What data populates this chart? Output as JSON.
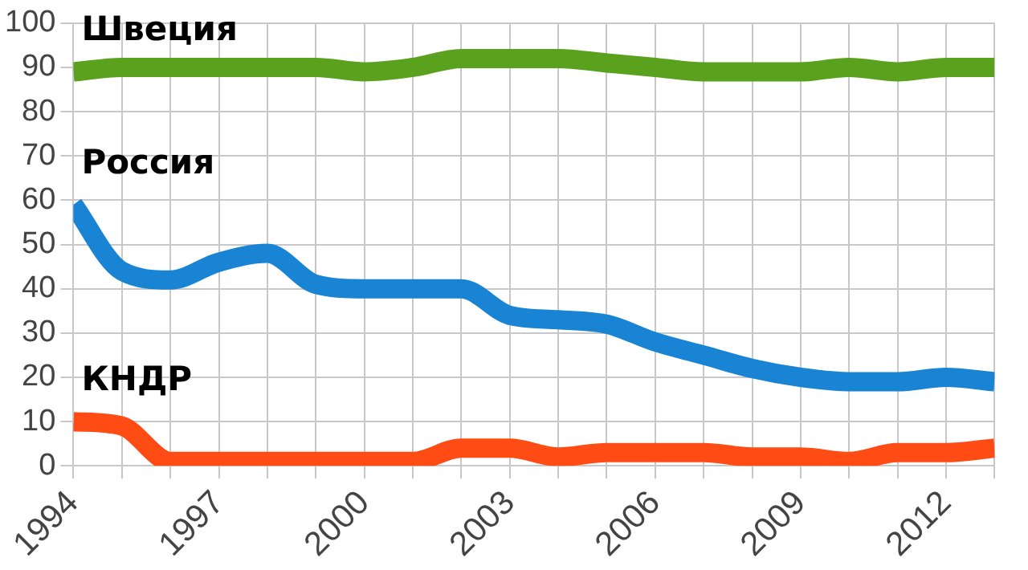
{
  "chart_data": {
    "type": "line",
    "x": [
      1994,
      1995,
      1996,
      1997,
      1998,
      1999,
      2000,
      2001,
      2002,
      2003,
      2004,
      2005,
      2006,
      2007,
      2008,
      2009,
      2010,
      2011,
      2012,
      2013
    ],
    "series": [
      {
        "name": "Швеция",
        "color": "#5aa21e",
        "values": [
          89,
          90,
          90,
          90,
          90,
          90,
          89,
          90,
          92,
          92,
          92,
          91,
          90,
          89,
          89,
          89,
          90,
          89,
          90,
          90
        ]
      },
      {
        "name": "Россия",
        "color": "#1a84d4",
        "values": [
          59,
          44,
          42,
          46,
          48,
          41,
          40,
          40,
          40,
          34,
          33,
          32,
          28,
          25,
          22,
          20,
          19,
          19,
          20,
          19
        ]
      },
      {
        "name": "КНДР",
        "color": "#ff4b14",
        "values": [
          10,
          9,
          1,
          1,
          1,
          1,
          1,
          1,
          4,
          4,
          2,
          3,
          3,
          3,
          2,
          2,
          1,
          3,
          3,
          4
        ]
      }
    ],
    "xlim": [
      1994,
      2013
    ],
    "xticks": [
      1994,
      {
        "value": 1995,
        "label": null
      },
      {
        "value": 1996,
        "label": null
      },
      1997,
      {
        "value": 1998,
        "label": null
      },
      {
        "value": 1999,
        "label": null
      },
      2000,
      {
        "value": 2001,
        "label": null
      },
      {
        "value": 2002,
        "label": null
      },
      2003,
      {
        "value": 2004,
        "label": null
      },
      {
        "value": 2005,
        "label": null
      },
      2006,
      {
        "value": 2007,
        "label": null
      },
      {
        "value": 2008,
        "label": null
      },
      2009,
      {
        "value": 2010,
        "label": null
      },
      {
        "value": 2011,
        "label": null
      },
      2012,
      {
        "value": 2013,
        "label": null
      }
    ],
    "ylim": [
      0,
      100
    ],
    "yticks": [
      0,
      10,
      20,
      30,
      40,
      50,
      60,
      70,
      80,
      90,
      100
    ],
    "grid": true,
    "legend": false,
    "marker": "none",
    "line_style": "solid"
  }
}
